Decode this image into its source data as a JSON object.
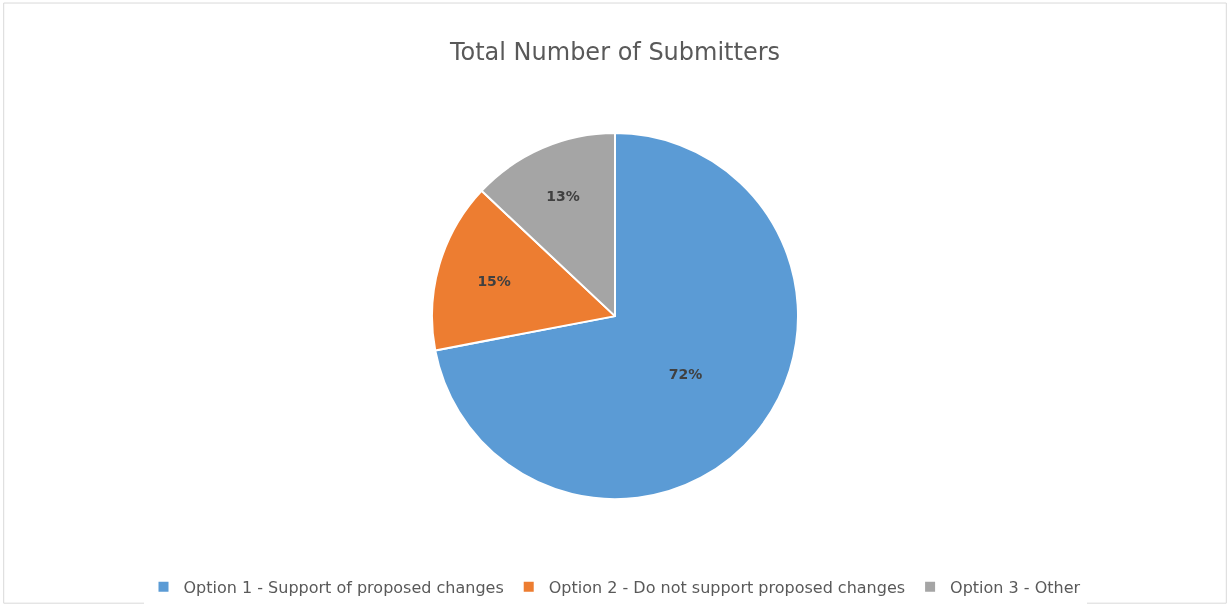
{
  "chart_data": {
    "type": "pie",
    "title": "Total Number of Submitters",
    "categories": [
      "Option 1 - Support of proposed changes",
      "Option 2 - Do not support proposed changes",
      "Option 3 - Other"
    ],
    "values": [
      72,
      15,
      13
    ],
    "colors": [
      "#5b9bd5",
      "#ed7d31",
      "#a5a5a5"
    ],
    "value_labels": [
      "72%",
      "15%",
      "13%"
    ],
    "legend": "bottom"
  }
}
